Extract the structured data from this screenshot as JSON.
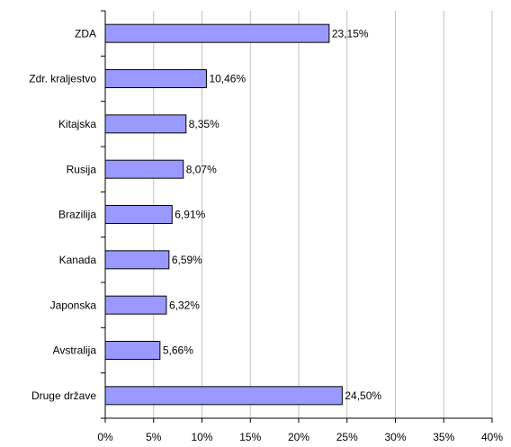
{
  "chart_data": {
    "type": "hbar",
    "categories": [
      "ZDA",
      "Zdr. kraljestvo",
      "Kitajska",
      "Rusija",
      "Brazilija",
      "Kanada",
      "Japonska",
      "Avstralija",
      "Druge države"
    ],
    "values": [
      23.15,
      10.46,
      8.35,
      8.07,
      6.91,
      6.59,
      6.32,
      5.66,
      24.5
    ],
    "value_labels": [
      "23,15%",
      "10,46%",
      "8,35%",
      "8,07%",
      "6,91%",
      "6,59%",
      "6,32%",
      "5,66%",
      "24,50%"
    ],
    "color": "#9999ff",
    "xlim": [
      0,
      40
    ],
    "xticks": [
      {
        "value": 0,
        "label": "0%"
      },
      {
        "value": 5,
        "label": "5%"
      },
      {
        "value": 10,
        "label": "10%"
      },
      {
        "value": 15,
        "label": "15%"
      },
      {
        "value": 20,
        "label": "20%"
      },
      {
        "value": 25,
        "label": "25%"
      },
      {
        "value": 30,
        "label": "30%"
      },
      {
        "value": 35,
        "label": "35%"
      },
      {
        "value": 40,
        "label": "40%"
      }
    ],
    "grid": true
  }
}
